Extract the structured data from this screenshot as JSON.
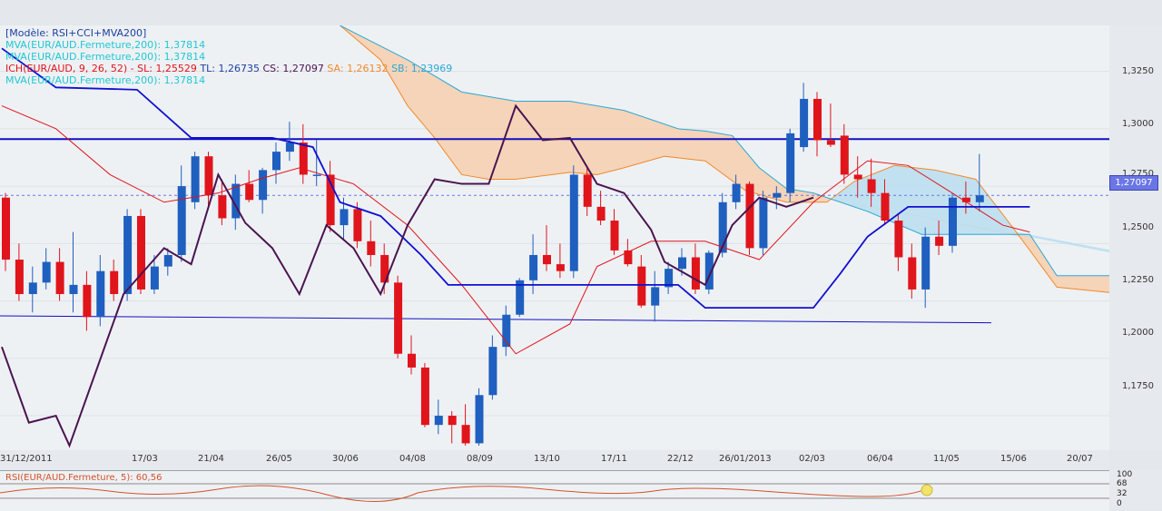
{
  "legend": {
    "model": "[Modèle: RSI+CCI+MVA200]",
    "mva1": "MVA(EUR/AUD.Fermeture,200): 1,37814",
    "mva2": "MVA(EUR/AUD.Fermeture,200): 1,37814",
    "ichimoku_name": "ICH(EUR/AUD, 9, 26, 52) -",
    "sl": "SL: 1,25529",
    "tl": "TL: 1,26735",
    "cs": "CS: 1,27097",
    "sa": "SA: 1,26132",
    "sb": "SB: 1,23969",
    "mva3": "MVA(EUR/AUD.Fermeture,200): 1,37814"
  },
  "colors": {
    "up": "#1f5fbf",
    "down": "#e0141b",
    "cloud_bearish": "#f6cfae",
    "cloud_bullish": "#b9def0",
    "tenkan": "#e0141b",
    "kijun": "#1010d0",
    "chikou": "#4a1450",
    "legend_cyan": "#1fc8d4",
    "legend_red": "#e0141b",
    "legend_orange": "#f08a2a",
    "legend_sb": "#2aa8d4"
  },
  "price_axis": {
    "ticks": [
      "1,3250",
      "1,3000",
      "1,2750",
      "1,2500",
      "1,2250",
      "1,2000",
      "1,1750"
    ],
    "current_price": "1,27097"
  },
  "date_axis": {
    "ticks": [
      "31/12/2011",
      "17/03",
      "21/04",
      "26/05",
      "30/06",
      "04/08",
      "08/09",
      "13/10",
      "17/11",
      "22/12",
      "26/01/2013",
      "02/03",
      "06/04",
      "11/05",
      "15/06",
      "20/07"
    ]
  },
  "rsi_panel": {
    "label": "RSI(EUR/AUD.Fermeture, 5): 60,56",
    "ticks": [
      "100",
      "68",
      "32",
      "0"
    ]
  },
  "chart_data": {
    "type": "candlestick",
    "pair": "EUR/AUD",
    "ylim": [
      1.16,
      1.345
    ],
    "horizontal_levels": [
      1.2955,
      1.2155
    ],
    "candles": [
      {
        "o": 1.27,
        "h": 1.272,
        "l": 1.238,
        "c": 1.243
      },
      {
        "o": 1.243,
        "h": 1.25,
        "l": 1.225,
        "c": 1.228
      },
      {
        "o": 1.228,
        "h": 1.24,
        "l": 1.22,
        "c": 1.233
      },
      {
        "o": 1.233,
        "h": 1.248,
        "l": 1.23,
        "c": 1.242
      },
      {
        "o": 1.242,
        "h": 1.248,
        "l": 1.225,
        "c": 1.228
      },
      {
        "o": 1.228,
        "h": 1.255,
        "l": 1.22,
        "c": 1.232
      },
      {
        "o": 1.232,
        "h": 1.238,
        "l": 1.212,
        "c": 1.218
      },
      {
        "o": 1.218,
        "h": 1.245,
        "l": 1.214,
        "c": 1.238
      },
      {
        "o": 1.238,
        "h": 1.243,
        "l": 1.225,
        "c": 1.228
      },
      {
        "o": 1.228,
        "h": 1.265,
        "l": 1.225,
        "c": 1.262
      },
      {
        "o": 1.262,
        "h": 1.265,
        "l": 1.228,
        "c": 1.23
      },
      {
        "o": 1.23,
        "h": 1.245,
        "l": 1.228,
        "c": 1.24
      },
      {
        "o": 1.24,
        "h": 1.248,
        "l": 1.236,
        "c": 1.245
      },
      {
        "o": 1.245,
        "h": 1.284,
        "l": 1.242,
        "c": 1.275
      },
      {
        "o": 1.268,
        "h": 1.29,
        "l": 1.265,
        "c": 1.288
      },
      {
        "o": 1.288,
        "h": 1.29,
        "l": 1.265,
        "c": 1.271
      },
      {
        "o": 1.271,
        "h": 1.278,
        "l": 1.258,
        "c": 1.261
      },
      {
        "o": 1.261,
        "h": 1.28,
        "l": 1.256,
        "c": 1.276
      },
      {
        "o": 1.276,
        "h": 1.282,
        "l": 1.268,
        "c": 1.269
      },
      {
        "o": 1.269,
        "h": 1.283,
        "l": 1.263,
        "c": 1.282
      },
      {
        "o": 1.282,
        "h": 1.294,
        "l": 1.276,
        "c": 1.29
      },
      {
        "o": 1.29,
        "h": 1.303,
        "l": 1.286,
        "c": 1.294
      },
      {
        "o": 1.294,
        "h": 1.302,
        "l": 1.276,
        "c": 1.28
      },
      {
        "o": 1.28,
        "h": 1.295,
        "l": 1.275,
        "c": 1.28
      },
      {
        "o": 1.28,
        "h": 1.286,
        "l": 1.255,
        "c": 1.258
      },
      {
        "o": 1.258,
        "h": 1.27,
        "l": 1.252,
        "c": 1.265
      },
      {
        "o": 1.265,
        "h": 1.268,
        "l": 1.248,
        "c": 1.251
      },
      {
        "o": 1.251,
        "h": 1.26,
        "l": 1.24,
        "c": 1.245
      },
      {
        "o": 1.245,
        "h": 1.25,
        "l": 1.228,
        "c": 1.233
      },
      {
        "o": 1.233,
        "h": 1.236,
        "l": 1.2,
        "c": 1.202
      },
      {
        "o": 1.202,
        "h": 1.21,
        "l": 1.193,
        "c": 1.196
      },
      {
        "o": 1.196,
        "h": 1.198,
        "l": 1.17,
        "c": 1.171
      },
      {
        "o": 1.171,
        "h": 1.182,
        "l": 1.167,
        "c": 1.175
      },
      {
        "o": 1.175,
        "h": 1.177,
        "l": 1.163,
        "c": 1.171
      },
      {
        "o": 1.171,
        "h": 1.18,
        "l": 1.162,
        "c": 1.163
      },
      {
        "o": 1.163,
        "h": 1.187,
        "l": 1.162,
        "c": 1.184
      },
      {
        "o": 1.184,
        "h": 1.21,
        "l": 1.182,
        "c": 1.205
      },
      {
        "o": 1.205,
        "h": 1.223,
        "l": 1.201,
        "c": 1.219
      },
      {
        "o": 1.219,
        "h": 1.235,
        "l": 1.218,
        "c": 1.234
      },
      {
        "o": 1.234,
        "h": 1.254,
        "l": 1.228,
        "c": 1.245
      },
      {
        "o": 1.245,
        "h": 1.258,
        "l": 1.238,
        "c": 1.241
      },
      {
        "o": 1.241,
        "h": 1.25,
        "l": 1.235,
        "c": 1.238
      },
      {
        "o": 1.238,
        "h": 1.284,
        "l": 1.235,
        "c": 1.28
      },
      {
        "o": 1.28,
        "h": 1.283,
        "l": 1.262,
        "c": 1.266
      },
      {
        "o": 1.266,
        "h": 1.273,
        "l": 1.258,
        "c": 1.26
      },
      {
        "o": 1.26,
        "h": 1.265,
        "l": 1.245,
        "c": 1.247
      },
      {
        "o": 1.247,
        "h": 1.252,
        "l": 1.24,
        "c": 1.241
      },
      {
        "o": 1.24,
        "h": 1.245,
        "l": 1.222,
        "c": 1.223
      },
      {
        "o": 1.223,
        "h": 1.238,
        "l": 1.216,
        "c": 1.231
      },
      {
        "o": 1.231,
        "h": 1.242,
        "l": 1.228,
        "c": 1.239
      },
      {
        "o": 1.239,
        "h": 1.248,
        "l": 1.236,
        "c": 1.244
      },
      {
        "o": 1.244,
        "h": 1.25,
        "l": 1.228,
        "c": 1.23
      },
      {
        "o": 1.23,
        "h": 1.247,
        "l": 1.228,
        "c": 1.246
      },
      {
        "o": 1.246,
        "h": 1.272,
        "l": 1.244,
        "c": 1.268
      },
      {
        "o": 1.268,
        "h": 1.28,
        "l": 1.265,
        "c": 1.276
      },
      {
        "o": 1.276,
        "h": 1.277,
        "l": 1.245,
        "c": 1.248
      },
      {
        "o": 1.248,
        "h": 1.273,
        "l": 1.245,
        "c": 1.27
      },
      {
        "o": 1.27,
        "h": 1.275,
        "l": 1.265,
        "c": 1.272
      },
      {
        "o": 1.272,
        "h": 1.3,
        "l": 1.268,
        "c": 1.298
      },
      {
        "o": 1.292,
        "h": 1.32,
        "l": 1.29,
        "c": 1.313
      },
      {
        "o": 1.313,
        "h": 1.316,
        "l": 1.288,
        "c": 1.295
      },
      {
        "o": 1.295,
        "h": 1.311,
        "l": 1.292,
        "c": 1.293
      },
      {
        "o": 1.297,
        "h": 1.302,
        "l": 1.276,
        "c": 1.28
      },
      {
        "o": 1.28,
        "h": 1.288,
        "l": 1.27,
        "c": 1.278
      },
      {
        "o": 1.278,
        "h": 1.287,
        "l": 1.266,
        "c": 1.272
      },
      {
        "o": 1.272,
        "h": 1.278,
        "l": 1.258,
        "c": 1.26
      },
      {
        "o": 1.26,
        "h": 1.263,
        "l": 1.238,
        "c": 1.244
      },
      {
        "o": 1.244,
        "h": 1.25,
        "l": 1.226,
        "c": 1.23
      },
      {
        "o": 1.23,
        "h": 1.257,
        "l": 1.222,
        "c": 1.253
      },
      {
        "o": 1.253,
        "h": 1.26,
        "l": 1.245,
        "c": 1.249
      },
      {
        "o": 1.249,
        "h": 1.272,
        "l": 1.246,
        "c": 1.27
      },
      {
        "o": 1.27,
        "h": 1.277,
        "l": 1.263,
        "c": 1.268
      },
      {
        "o": 1.268,
        "h": 1.289,
        "l": 1.264,
        "c": 1.271
      }
    ],
    "tenkan": [
      [
        0,
        1.31
      ],
      [
        4,
        1.3
      ],
      [
        8,
        1.28
      ],
      [
        12,
        1.268
      ],
      [
        16,
        1.272
      ],
      [
        19,
        1.278
      ],
      [
        22,
        1.283
      ],
      [
        26,
        1.276
      ],
      [
        30,
        1.258
      ],
      [
        34,
        1.232
      ],
      [
        38,
        1.202
      ],
      [
        42,
        1.215
      ],
      [
        44,
        1.24
      ],
      [
        48,
        1.251
      ],
      [
        52,
        1.251
      ],
      [
        56,
        1.243
      ],
      [
        60,
        1.268
      ],
      [
        64,
        1.286
      ],
      [
        67,
        1.284
      ],
      [
        70,
        1.273
      ],
      [
        74,
        1.258
      ],
      [
        76,
        1.255
      ]
    ],
    "kijun": [
      [
        0,
        1.335
      ],
      [
        4,
        1.318
      ],
      [
        10,
        1.317
      ],
      [
        14,
        1.296
      ],
      [
        20,
        1.296
      ],
      [
        23,
        1.292
      ],
      [
        25,
        1.268
      ],
      [
        28,
        1.262
      ],
      [
        31,
        1.245
      ],
      [
        33,
        1.232
      ],
      [
        40,
        1.232
      ],
      [
        50,
        1.232
      ],
      [
        52,
        1.222
      ],
      [
        55,
        1.222
      ],
      [
        60,
        1.222
      ],
      [
        62,
        1.237
      ],
      [
        64,
        1.253
      ],
      [
        67,
        1.266
      ],
      [
        72,
        1.266
      ],
      [
        76,
        1.266
      ]
    ],
    "chikou": [
      [
        0,
        1.205
      ],
      [
        2,
        1.172
      ],
      [
        4,
        1.175
      ],
      [
        5,
        1.162
      ],
      [
        9,
        1.228
      ],
      [
        12,
        1.248
      ],
      [
        14,
        1.241
      ],
      [
        16,
        1.28
      ],
      [
        18,
        1.259
      ],
      [
        20,
        1.248
      ],
      [
        22,
        1.228
      ],
      [
        24,
        1.258
      ],
      [
        26,
        1.248
      ],
      [
        28,
        1.228
      ],
      [
        30,
        1.258
      ],
      [
        32,
        1.278
      ],
      [
        34,
        1.276
      ],
      [
        36,
        1.276
      ],
      [
        38,
        1.31
      ],
      [
        40,
        1.295
      ],
      [
        42,
        1.296
      ],
      [
        44,
        1.276
      ],
      [
        46,
        1.272
      ],
      [
        48,
        1.256
      ],
      [
        49,
        1.242
      ],
      [
        52,
        1.232
      ],
      [
        54,
        1.258
      ],
      [
        56,
        1.27
      ],
      [
        58,
        1.266
      ],
      [
        60,
        1.27
      ]
    ],
    "senkou_a": [
      [
        25,
        1.345
      ],
      [
        28,
        1.33
      ],
      [
        30,
        1.31
      ],
      [
        32,
        1.296
      ],
      [
        34,
        1.28
      ],
      [
        36,
        1.278
      ],
      [
        38,
        1.278
      ],
      [
        42,
        1.281
      ],
      [
        44,
        1.28
      ],
      [
        46,
        1.283
      ],
      [
        49,
        1.288
      ],
      [
        52,
        1.286
      ],
      [
        55,
        1.273
      ],
      [
        58,
        1.268
      ],
      [
        61,
        1.268
      ],
      [
        63,
        1.277
      ],
      [
        66,
        1.284
      ],
      [
        69,
        1.282
      ],
      [
        72,
        1.278
      ],
      [
        75,
        1.255
      ],
      [
        78,
        1.231
      ],
      [
        83,
        1.228
      ],
      [
        87,
        1.223
      ],
      [
        89,
        1.231
      ],
      [
        91,
        1.232
      ],
      [
        94,
        1.232
      ],
      [
        96,
        1.243
      ],
      [
        98,
        1.255
      ],
      [
        100,
        1.257
      ]
    ],
    "senkou_b": [
      [
        25,
        1.345
      ],
      [
        30,
        1.33
      ],
      [
        34,
        1.316
      ],
      [
        38,
        1.312
      ],
      [
        42,
        1.312
      ],
      [
        46,
        1.308
      ],
      [
        50,
        1.3
      ],
      [
        52,
        1.299
      ],
      [
        54,
        1.297
      ],
      [
        56,
        1.283
      ],
      [
        58,
        1.274
      ],
      [
        60,
        1.272
      ],
      [
        64,
        1.264
      ],
      [
        68,
        1.254
      ],
      [
        72,
        1.254
      ],
      [
        76,
        1.254
      ],
      [
        78,
        1.236
      ],
      [
        82,
        1.236
      ],
      [
        85,
        1.236
      ],
      [
        87,
        1.232
      ],
      [
        90,
        1.232
      ],
      [
        95,
        1.232
      ],
      [
        100,
        1.24
      ]
    ]
  }
}
